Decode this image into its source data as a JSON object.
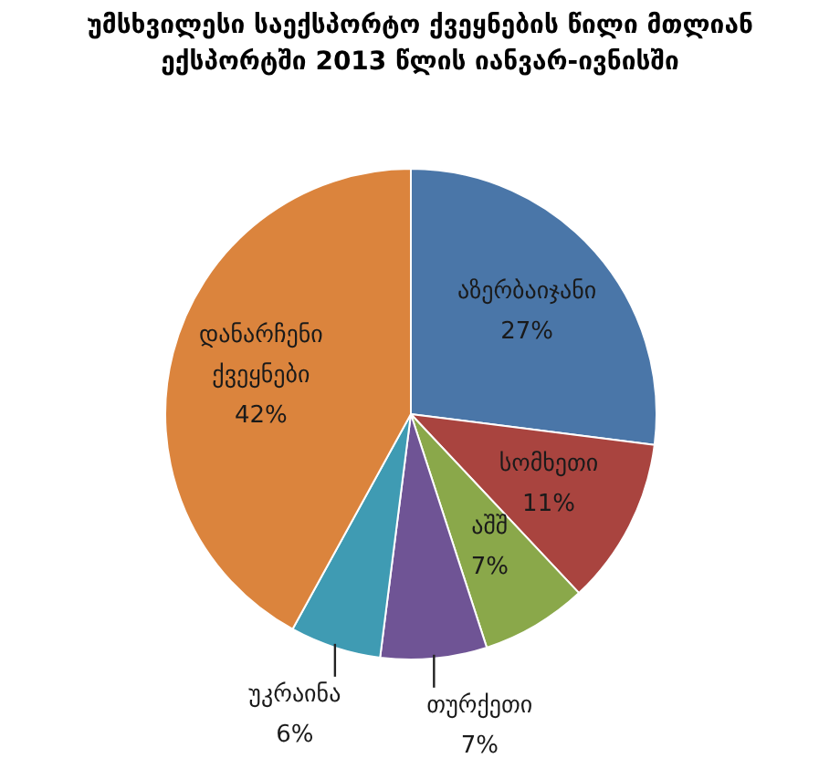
{
  "chart_data": {
    "type": "pie",
    "title": "უმსხვილესი საექსპორტო ქვეყნების წილი მთლიან ექსპორტში 2013 წლის იანვარ-ივნისში",
    "categories": [
      "აზერბაიჯანი",
      "სომხეთი",
      "აშშ",
      "თურქეთი",
      "უკრაინა",
      "დანარჩენი ქვეყნები"
    ],
    "values": [
      27,
      11,
      7,
      7,
      6,
      42
    ],
    "value_labels": [
      "27%",
      "11%",
      "7%",
      "7%",
      "6%",
      "42%"
    ],
    "colors": [
      "#4a76a8",
      "#a9443f",
      "#8aa84a",
      "#6f5495",
      "#3f9bb3",
      "#db843d"
    ]
  }
}
